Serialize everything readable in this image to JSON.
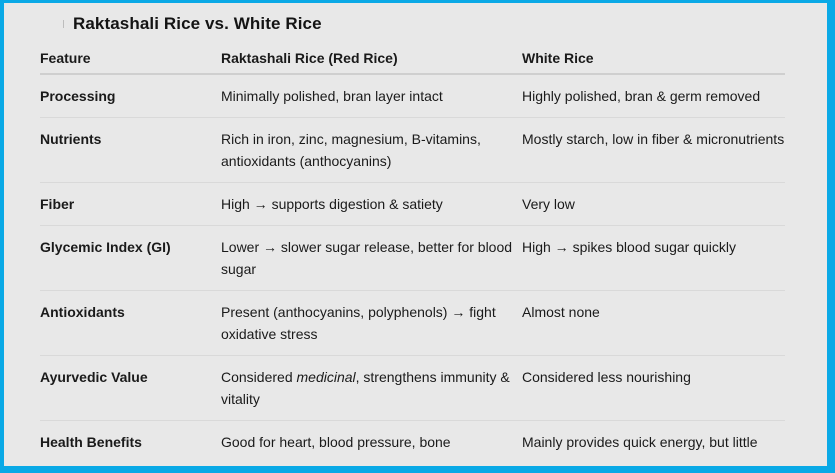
{
  "document": {
    "title": "Raktashali Rice vs. White Rice",
    "colors": {
      "frame_border": "#0aa9e6",
      "background": "#e8e8e8",
      "text": "#1a1a1a",
      "divider": "#d9d9d9"
    }
  },
  "table": {
    "headers": [
      "Feature",
      "Raktashali Rice (Red Rice)",
      "White Rice"
    ],
    "rows": [
      {
        "feature": "Processing",
        "red_rice": "Minimally polished, bran layer intact",
        "white_rice": "Highly polished, bran & germ removed"
      },
      {
        "feature": "Nutrients",
        "red_rice": "Rich in iron, zinc, magnesium, B-vitamins, antioxidants (anthocyanins)",
        "white_rice": "Mostly starch, low in fiber & micronutrients"
      },
      {
        "feature": "Fiber",
        "red_rice": "High → supports digestion & satiety",
        "white_rice": "Very low"
      },
      {
        "feature": "Glycemic Index (GI)",
        "red_rice": "Lower → slower sugar release, better for blood sugar",
        "white_rice": "High → spikes blood sugar quickly"
      },
      {
        "feature": "Antioxidants",
        "red_rice": "Present (anthocyanins, polyphenols) → fight oxidative stress",
        "white_rice": "Almost none"
      },
      {
        "feature": "Ayurvedic Value",
        "red_rice_prefix": "Considered ",
        "red_rice_emphasis": "medicinal",
        "red_rice_suffix": ", strengthens immunity & vitality",
        "white_rice": "Considered less nourishing"
      },
      {
        "feature": "Health Benefits",
        "red_rice": "Good for heart, blood pressure, bone",
        "white_rice": "Mainly provides quick energy, but little"
      }
    ]
  }
}
